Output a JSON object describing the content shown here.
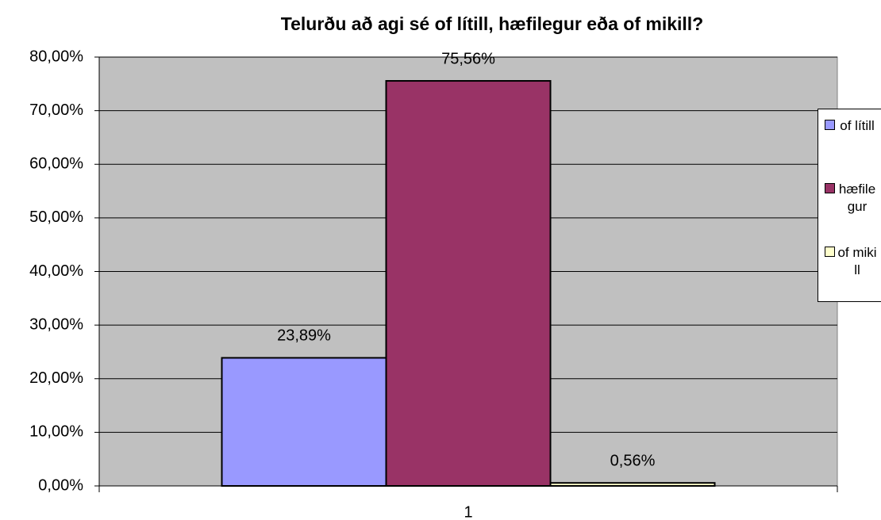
{
  "chart_data": {
    "type": "bar",
    "title": "Telurðu að agi sé of lítill, hæfilegur eða of mikill?",
    "categories": [
      "1"
    ],
    "series": [
      {
        "name": "of lítill",
        "color": "#9999ff",
        "values": [
          23.89
        ],
        "value_labels": [
          "23,89%"
        ]
      },
      {
        "name": "hæfilegur",
        "color": "#993366",
        "values": [
          75.56
        ],
        "value_labels": [
          "75,56%"
        ]
      },
      {
        "name": "of mikill",
        "color": "#ffffcc",
        "values": [
          0.56
        ],
        "value_labels": [
          "0,56%"
        ]
      }
    ],
    "ylim": [
      0,
      80
    ],
    "yticks": [
      {
        "value": 0,
        "label": "0,00%"
      },
      {
        "value": 10,
        "label": "10,00%"
      },
      {
        "value": 20,
        "label": "20,00%"
      },
      {
        "value": 30,
        "label": "30,00%"
      },
      {
        "value": 40,
        "label": "40,00%"
      },
      {
        "value": 50,
        "label": "50,00%"
      },
      {
        "value": 60,
        "label": "60,00%"
      },
      {
        "value": 70,
        "label": "70,00%"
      },
      {
        "value": 80,
        "label": "80,00%"
      }
    ],
    "grid": true,
    "legend": "right"
  }
}
